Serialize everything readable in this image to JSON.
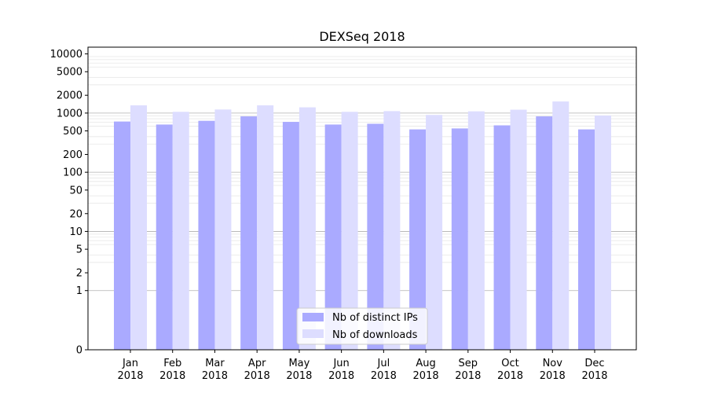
{
  "chart_data": {
    "type": "bar",
    "title": "DEXSeq 2018",
    "xlabel": "",
    "ylabel": "",
    "y_scale": "symlog",
    "ylim": [
      0,
      13000
    ],
    "grid": "horizontal major and minor",
    "legend_position": "bottom-center",
    "categories": [
      [
        "Jan",
        "2018"
      ],
      [
        "Feb",
        "2018"
      ],
      [
        "Mar",
        "2018"
      ],
      [
        "Apr",
        "2018"
      ],
      [
        "May",
        "2018"
      ],
      [
        "Jun",
        "2018"
      ],
      [
        "Jul",
        "2018"
      ],
      [
        "Aug",
        "2018"
      ],
      [
        "Sep",
        "2018"
      ],
      [
        "Oct",
        "2018"
      ],
      [
        "Nov",
        "2018"
      ],
      [
        "Dec",
        "2018"
      ]
    ],
    "y_ticks": [
      {
        "value": 0,
        "label": "0"
      },
      {
        "value": 1,
        "label": "1"
      },
      {
        "value": 2,
        "label": "2"
      },
      {
        "value": 5,
        "label": "5"
      },
      {
        "value": 10,
        "label": "10"
      },
      {
        "value": 20,
        "label": "20"
      },
      {
        "value": 50,
        "label": "50"
      },
      {
        "value": 100,
        "label": "100"
      },
      {
        "value": 200,
        "label": "200"
      },
      {
        "value": 500,
        "label": "500"
      },
      {
        "value": 1000,
        "label": "1000"
      },
      {
        "value": 2000,
        "label": "2000"
      },
      {
        "value": 5000,
        "label": "5000"
      },
      {
        "value": 10000,
        "label": "10000"
      }
    ],
    "series": [
      {
        "name": "Nb of distinct IPs",
        "color": "#aaaaff",
        "values": [
          720,
          640,
          740,
          880,
          710,
          640,
          660,
          530,
          550,
          620,
          880,
          530
        ]
      },
      {
        "name": "Nb of downloads",
        "color": "#ddddff",
        "values": [
          1350,
          1050,
          1150,
          1350,
          1250,
          1050,
          1080,
          930,
          1070,
          1140,
          1570,
          910
        ]
      }
    ]
  }
}
